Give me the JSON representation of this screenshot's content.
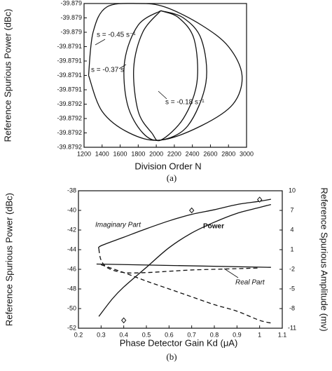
{
  "chart_data": [
    {
      "type": "line",
      "xlabel": "Division Order N",
      "ylabel": "Reference Spurious Power (dBc)",
      "caption": "(a)",
      "annotations": [
        "s = -0.45 s⁻¹",
        "s = -0.37 s",
        "s = -0.18 s⁻¹"
      ],
      "xlim": [
        1200,
        3000
      ],
      "xticks": [
        1200,
        1400,
        1600,
        1800,
        2000,
        2200,
        2400,
        2600,
        2800,
        3000
      ],
      "ylim": [
        -39.8792,
        -39.879
      ],
      "yticks": [
        {
          "value": -39.879,
          "label": "-39.879"
        },
        {
          "value": -39.87902,
          "label": "-39.879"
        },
        {
          "value": -39.87904,
          "label": "-39.879"
        },
        {
          "value": -39.87906,
          "label": "-39.8791"
        },
        {
          "value": -39.87908,
          "label": "-39.8791"
        },
        {
          "value": -39.8791,
          "label": "-39.8791"
        },
        {
          "value": -39.87912,
          "label": "-39.8791"
        },
        {
          "value": -39.87914,
          "label": "-39.8792"
        },
        {
          "value": -39.87916,
          "label": "-39.8792"
        },
        {
          "value": -39.87918,
          "label": "-39.8792"
        },
        {
          "value": -39.8792,
          "label": "-39.8792"
        }
      ],
      "grid": false,
      "series": [
        {
          "color": "#111111",
          "x": [
            1250,
            1300,
            1450,
            1800,
            2100,
            2500,
            2800,
            2950,
            2850,
            2500,
            2050,
            1700,
            1400,
            1250
          ],
          "values": [
            -39.8791,
            -39.87904,
            -39.879005,
            -39.879,
            -39.879005,
            -39.87903,
            -39.87906,
            -39.8791,
            -39.87914,
            -39.87917,
            -39.87919,
            -39.87918,
            -39.87915,
            -39.8791
          ]
        },
        {
          "color": "#111111",
          "x": [
            2050,
            1800,
            1650,
            1680,
            1850,
            2050,
            2350,
            2550,
            2500,
            2300,
            2050
          ],
          "values": [
            -39.87901,
            -39.87903,
            -39.87908,
            -39.87914,
            -39.87918,
            -39.87919,
            -39.87917,
            -39.87911,
            -39.87905,
            -39.87902,
            -39.87901
          ]
        },
        {
          "color": "#111111",
          "x": [
            2050,
            1850,
            1750,
            1800,
            1950,
            2050,
            2300,
            2450,
            2420,
            2250,
            2050
          ],
          "values": [
            -39.87901,
            -39.87904,
            -39.87909,
            -39.87915,
            -39.87918,
            -39.87919,
            -39.87916,
            -39.87911,
            -39.87905,
            -39.87902,
            -39.87901
          ]
        }
      ]
    },
    {
      "type": "line",
      "xlabel": "Phase Detector Gain Kd  (μA)",
      "ylabel": "Reference Spurious Power (dBc)",
      "y2label": "Reference Spurious Amplitude (mv)",
      "caption": "(b)",
      "annotations": [
        "Imaginary Part",
        "Power",
        "Real Part"
      ],
      "xlim": [
        0.2,
        1.1
      ],
      "xticks": [
        0.2,
        0.3,
        0.4,
        0.5,
        0.6,
        0.7,
        0.8,
        0.9,
        1,
        1.1
      ],
      "ylim": [
        -52,
        -38
      ],
      "yticks": [
        -52,
        -50,
        -48,
        -46,
        -44,
        -42,
        -40,
        -38
      ],
      "y2lim": [
        -11,
        10
      ],
      "y2ticks": [
        -11,
        -8,
        -5,
        -2,
        1,
        4,
        7,
        10
      ],
      "grid": false,
      "series": [
        {
          "color": "#111111",
          "x": [
            0.29,
            0.35,
            0.4,
            0.5,
            0.6,
            0.7,
            0.8,
            0.9,
            1.0,
            1.05
          ],
          "values": [
            -50.8,
            -49,
            -47.8,
            -45.8,
            -43.8,
            -42.3,
            -41.2,
            -40.3,
            -39.7,
            -39.4
          ]
        },
        {
          "color": "#111111",
          "axis": "y2",
          "x": [
            0.29,
            0.3,
            0.4,
            0.5,
            0.6,
            0.7,
            0.8,
            0.9,
            1.0,
            1.05
          ],
          "values": [
            1.1,
            1.6,
            2.9,
            4.2,
            5.4,
            6.4,
            7.1,
            7.9,
            8.4,
            8.7
          ]
        },
        {
          "color": "#111111",
          "axis": "y2",
          "line_style": "dashed",
          "x": [
            0.29,
            0.3,
            0.33,
            0.4,
            0.5,
            0.6,
            0.7,
            0.8,
            0.9,
            1.0
          ],
          "values": [
            1.1,
            -0.6,
            -1.8,
            -2.5,
            -2.5,
            -2.3,
            -2.1,
            -2.0,
            -1.9,
            -1.8
          ]
        },
        {
          "color": "#111111",
          "axis": "y2",
          "line_style": "dashed",
          "x": [
            0.3,
            0.4,
            0.5,
            0.6,
            0.7,
            0.8,
            0.9,
            1.0,
            1.05
          ],
          "values": [
            -1.3,
            -2.5,
            -3.8,
            -5.0,
            -6.2,
            -7.4,
            -8.4,
            -9.8,
            -10.2
          ]
        },
        {
          "color": "#111111",
          "axis": "y2",
          "x": [
            0.28,
            1.05
          ],
          "values": [
            -1.2,
            -1.7
          ]
        },
        {
          "color": "#111111",
          "marker": "diamond",
          "x": [
            0.4,
            0.7,
            1.0
          ],
          "values": [
            -51.2,
            -40,
            -38.9
          ]
        }
      ]
    }
  ]
}
